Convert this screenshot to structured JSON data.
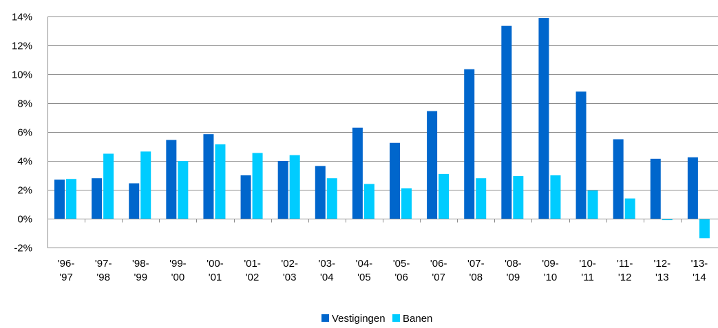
{
  "chart_data": {
    "type": "bar",
    "categories": [
      [
        "'96-",
        "'97"
      ],
      [
        "'97-",
        "'98"
      ],
      [
        "'98-",
        "'99"
      ],
      [
        "'99-",
        "'00"
      ],
      [
        "'00-",
        "'01"
      ],
      [
        "'01-",
        "'02"
      ],
      [
        "'02-",
        "'03"
      ],
      [
        "'03-",
        "'04"
      ],
      [
        "'04-",
        "'05"
      ],
      [
        "'05-",
        "'06"
      ],
      [
        "'06-",
        "'07"
      ],
      [
        "'07-",
        "'08"
      ],
      [
        "'08-",
        "'09"
      ],
      [
        "'09-",
        "'10"
      ],
      [
        "'10-",
        "'11"
      ],
      [
        "'11-",
        "'12"
      ],
      [
        "'12-",
        "'13"
      ],
      [
        "'13-",
        "'14"
      ]
    ],
    "series": [
      {
        "name": "Vestigingen",
        "color": "#0066CC",
        "values": [
          2.7,
          2.8,
          2.45,
          5.45,
          5.85,
          3.0,
          4.0,
          3.65,
          6.3,
          5.25,
          7.45,
          10.35,
          13.35,
          13.9,
          8.8,
          5.5,
          4.15,
          4.25
        ]
      },
      {
        "name": "Banen",
        "color": "#00CCFF",
        "values": [
          2.75,
          4.5,
          4.65,
          4.0,
          5.15,
          4.55,
          4.4,
          2.8,
          2.4,
          2.1,
          3.1,
          2.8,
          2.95,
          3.0,
          1.95,
          1.4,
          -0.1,
          -1.35
        ]
      }
    ],
    "yticks": [
      "14%",
      "12%",
      "10%",
      "8%",
      "6%",
      "4%",
      "2%",
      "0%",
      "-2%"
    ],
    "ylim": [
      -2,
      14
    ],
    "grid": true,
    "legend_position": "bottom-center",
    "title": "",
    "xlabel": "",
    "ylabel": ""
  }
}
